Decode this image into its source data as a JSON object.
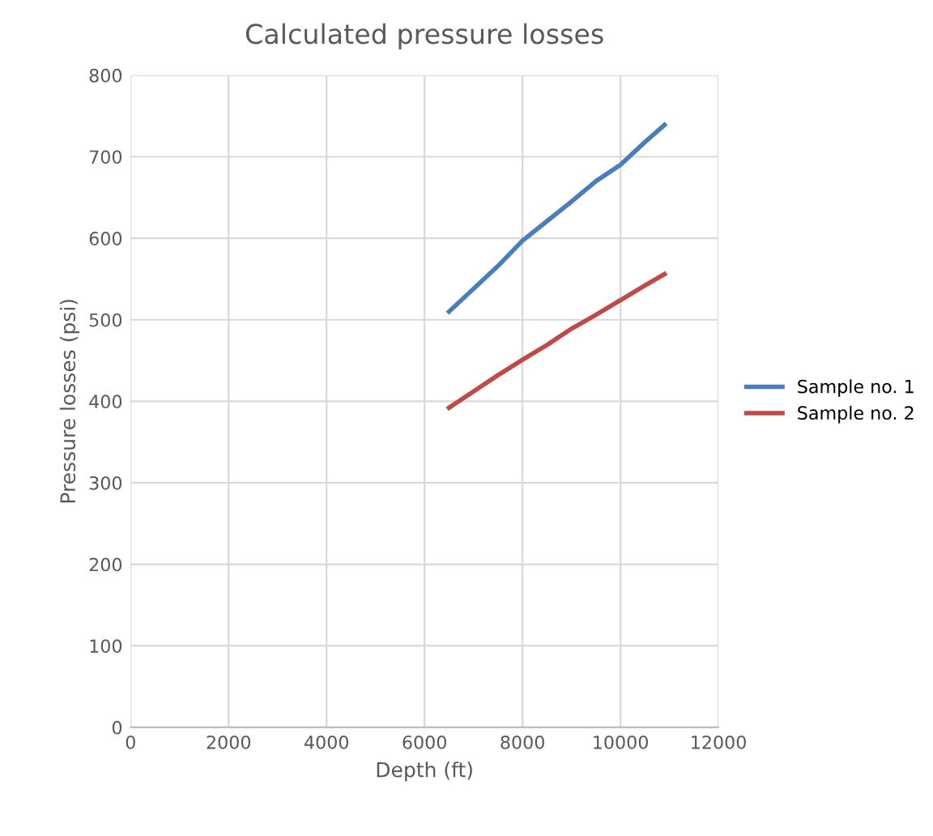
{
  "chart_data": {
    "type": "line",
    "title": "Calculated pressure losses",
    "xlabel": "Depth (ft)",
    "ylabel": "Pressure losses (psi)",
    "xlim": [
      0,
      12000
    ],
    "xticks": [
      0,
      2000,
      4000,
      6000,
      8000,
      10000,
      12000
    ],
    "ylim": [
      0,
      800
    ],
    "yticks": [
      0,
      100,
      200,
      300,
      400,
      500,
      600,
      700,
      800
    ],
    "grid": true,
    "legend": "right",
    "series": [
      {
        "name": "Sample no. 1",
        "color": "#4a7ebb",
        "x": [
          6500,
          7000,
          7500,
          8000,
          8500,
          9000,
          9500,
          10000,
          10500,
          10900
        ],
        "values": [
          510,
          538,
          566,
          597,
          621,
          645,
          670,
          690,
          718,
          739
        ]
      },
      {
        "name": "Sample no. 2",
        "color": "#be4b48",
        "x": [
          6500,
          7000,
          7500,
          8000,
          8500,
          9000,
          9500,
          10000,
          10500,
          10900
        ],
        "values": [
          392,
          412,
          432,
          451,
          469,
          489,
          506,
          524,
          542,
          556
        ]
      }
    ]
  }
}
